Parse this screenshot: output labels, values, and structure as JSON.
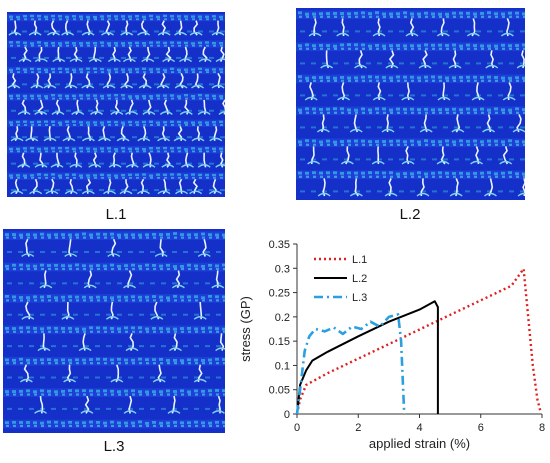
{
  "panels": [
    {
      "label": "L.1",
      "pattern": "dense-horizontal-bands",
      "colors": {
        "base": "#1530c8",
        "fiber": "#35a9e0",
        "crack": "#e8f4ff"
      }
    },
    {
      "label": "L.2",
      "pattern": "grid-cracks",
      "colors": {
        "base": "#1530c8",
        "fiber": "#35a9e0",
        "crack": "#e8f4ff"
      }
    },
    {
      "label": "L.3",
      "pattern": "sparse-cracks",
      "colors": {
        "base": "#1530c8",
        "fiber": "#35a9e0",
        "crack": "#e8f4ff"
      }
    }
  ],
  "chart_data": {
    "type": "line",
    "xlabel": "applied strain (%)",
    "ylabel": "stress (GP)",
    "xlim": [
      0,
      8
    ],
    "ylim": [
      0,
      0.35
    ],
    "xticks": [
      0,
      2,
      4,
      6,
      8
    ],
    "yticks": [
      0,
      0.05,
      0.1,
      0.15,
      0.2,
      0.25,
      0.3,
      0.35
    ],
    "grid": false,
    "legend": "top-left",
    "series": [
      {
        "name": "L.1",
        "color": "#e02020",
        "style": "dotted",
        "x": [
          0,
          0.1,
          0.3,
          1,
          2,
          3,
          4,
          5,
          6,
          7,
          7.4,
          7.55,
          7.7,
          7.85,
          7.95
        ],
        "y": [
          0,
          0.03,
          0.06,
          0.084,
          0.114,
          0.144,
          0.174,
          0.204,
          0.234,
          0.264,
          0.299,
          0.2,
          0.1,
          0.03,
          0.005
        ]
      },
      {
        "name": "L.2",
        "color": "#000000",
        "style": "solid",
        "x": [
          0,
          0.1,
          0.3,
          0.5,
          1,
          2,
          3,
          4,
          4.5,
          4.6,
          4.6
        ],
        "y": [
          0,
          0.06,
          0.09,
          0.11,
          0.128,
          0.16,
          0.19,
          0.215,
          0.232,
          0.22,
          0
        ]
      },
      {
        "name": "L.3",
        "color": "#2aa0e0",
        "style": "dashdot",
        "x": [
          0,
          0.1,
          0.25,
          0.4,
          0.6,
          0.9,
          1.2,
          1.5,
          1.8,
          2.1,
          2.4,
          2.7,
          3.0,
          3.3,
          3.4,
          3.5
        ],
        "y": [
          0,
          0.05,
          0.13,
          0.16,
          0.175,
          0.17,
          0.178,
          0.165,
          0.18,
          0.175,
          0.19,
          0.18,
          0.2,
          0.205,
          0.15,
          0
        ]
      }
    ]
  }
}
